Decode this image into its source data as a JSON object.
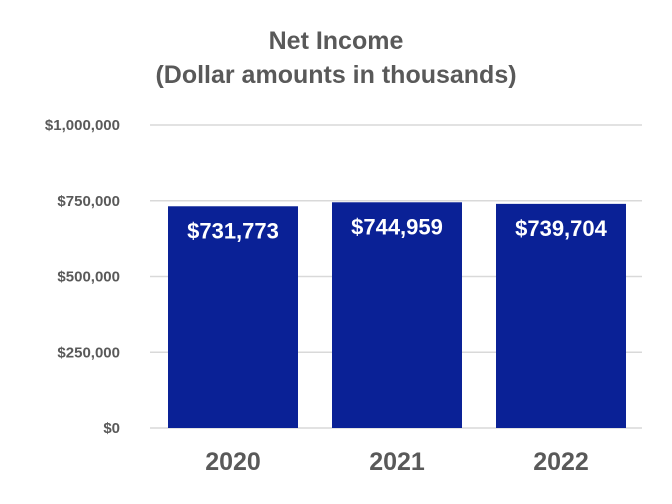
{
  "chart_data": {
    "type": "bar",
    "title": "Net Income",
    "subtitle": "(Dollar amounts in thousands)",
    "categories": [
      "2020",
      "2021",
      "2022"
    ],
    "values": [
      731773,
      744959,
      739704
    ],
    "data_labels": [
      "$731,773",
      "$744,959",
      "$739,704"
    ],
    "xlabel": "",
    "ylabel": "",
    "ylim": [
      0,
      1000000
    ],
    "y_ticks": [
      0,
      250000,
      500000,
      750000,
      1000000
    ],
    "y_tick_labels": [
      "$0",
      "$250,000",
      "$500,000",
      "$750,000",
      "$1,000,000"
    ],
    "grid": true,
    "legend": "none",
    "colors": {
      "bar": "#0a2196",
      "grid": "#d9d9d9",
      "text": "#595959",
      "data_label": "#ffffff"
    }
  }
}
